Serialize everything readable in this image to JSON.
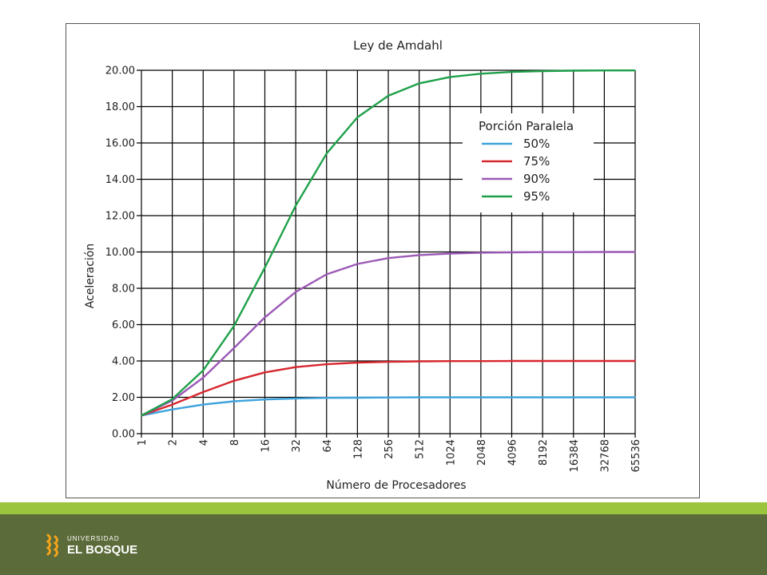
{
  "chart_data": {
    "type": "line",
    "title": "Ley de Amdahl",
    "xlabel": "Número de Procesadores",
    "ylabel": "Aceleración",
    "x_scale": "log2",
    "x": [
      1,
      2,
      4,
      8,
      16,
      32,
      64,
      128,
      256,
      512,
      1024,
      2048,
      4096,
      8192,
      16384,
      32768,
      65536
    ],
    "x_tick_labels": [
      "1",
      "2",
      "4",
      "8",
      "16",
      "32",
      "64",
      "128",
      "256",
      "512",
      "1024",
      "2048",
      "4096",
      "8192",
      "16384",
      "32768",
      "65536"
    ],
    "ylim": [
      0,
      20
    ],
    "y_ticks": [
      0,
      2,
      4,
      6,
      8,
      10,
      12,
      14,
      16,
      18,
      20
    ],
    "y_tick_labels": [
      "0.00",
      "2.00",
      "4.00",
      "6.00",
      "8.00",
      "10.00",
      "12.00",
      "14.00",
      "16.00",
      "18.00",
      "20.00"
    ],
    "grid": true,
    "legend": {
      "title": "Porción Paralela",
      "placement": "upper-right"
    },
    "series": [
      {
        "name": "50%",
        "color": "#3ea3dc",
        "values": [
          1.0,
          1.33,
          1.6,
          1.78,
          1.88,
          1.94,
          1.97,
          1.98,
          1.99,
          2.0,
          2.0,
          2.0,
          2.0,
          2.0,
          2.0,
          2.0,
          2.0
        ]
      },
      {
        "name": "75%",
        "color": "#d7272e",
        "values": [
          1.0,
          1.6,
          2.29,
          2.91,
          3.37,
          3.66,
          3.82,
          3.91,
          3.95,
          3.98,
          3.99,
          3.99,
          4.0,
          4.0,
          4.0,
          4.0,
          4.0
        ]
      },
      {
        "name": "90%",
        "color": "#9b59b6",
        "values": [
          1.0,
          1.82,
          3.08,
          4.71,
          6.4,
          7.8,
          8.77,
          9.34,
          9.66,
          9.83,
          9.91,
          9.96,
          9.98,
          9.99,
          9.99,
          10.0,
          10.0
        ]
      },
      {
        "name": "95%",
        "color": "#1fa04a",
        "values": [
          1.0,
          1.9,
          3.48,
          5.93,
          9.14,
          12.55,
          15.42,
          17.41,
          18.6,
          19.28,
          19.63,
          19.81,
          19.91,
          19.95,
          19.98,
          19.99,
          19.99
        ]
      }
    ]
  },
  "footer": {
    "logo_line1": "UNIVERSIDAD",
    "logo_line2": "EL BOSQUE",
    "stripe_color": "#9bc53d",
    "band_color": "#5c6b3a"
  }
}
